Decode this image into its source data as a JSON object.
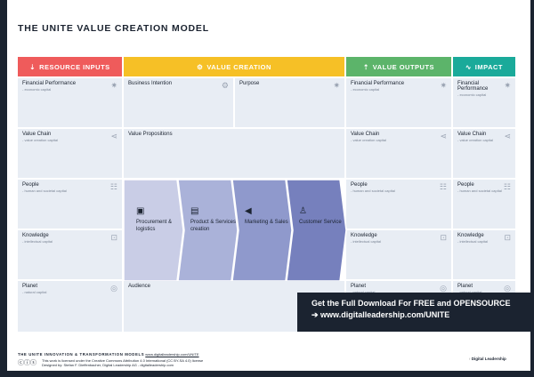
{
  "title": "THE UNITE VALUE CREATION MODEL",
  "headers": [
    {
      "label": "RESOURCE INPUTS",
      "color": "#ef5b5b",
      "icon": "hand-seed-icon"
    },
    {
      "label": "VALUE CREATION",
      "color": "#f6c026",
      "icon": "gear-bulb-icon"
    },
    {
      "label": "VALUE OUTPUTS",
      "color": "#5cb46a",
      "icon": "hand-output-icon"
    },
    {
      "label": "IMPACT",
      "color": "#1aaa9a",
      "icon": "path-icon"
    }
  ],
  "capitals": [
    {
      "title": "Financial Performance",
      "sub": "- economic capital",
      "icon": "badge-icon"
    },
    {
      "title": "Value Chain",
      "sub": "- value creation capital",
      "icon": "share-icon"
    },
    {
      "title": "People",
      "sub": "- human and societal capital",
      "icon": "people-icon"
    },
    {
      "title": "Knowledge",
      "sub": "- intellectual capital",
      "icon": "book-icon"
    },
    {
      "title": "Planet",
      "sub": "- natural capital",
      "icon": "globe-icon"
    }
  ],
  "creation": {
    "business_intention": "Business Intention",
    "purpose": "Purpose",
    "value_propositions": "Value Propositions",
    "audience": "Audience"
  },
  "chain": [
    {
      "label": "Procurement & logistics",
      "icon": "truck-icon",
      "color": "#c9cde6"
    },
    {
      "label": "Product & Services creation",
      "icon": "box-icon",
      "color": "#aab2d9"
    },
    {
      "label": "Marketing & Sales",
      "icon": "megaphone-icon",
      "color": "#8f99cc"
    },
    {
      "label": "Customer Service",
      "icon": "user-icon",
      "color": "#7680bd"
    }
  ],
  "banner": {
    "line1": "Get the Full Download For FREE and OPENSOURCE",
    "line2": "www.digitalleadership.com/UNITE"
  },
  "footer": {
    "heading": "THE UNITE INNOVATION & TRANSFORMATION MODELS",
    "link": "www.digitalleadership.com/UNITE",
    "license": "This work is licensed under the Creative Commons Attribution 4.0 International (CC BY-SA 4.0) license",
    "designer": "Designed by: Stefan F. Dieffenbacher, Digital Leadership AG - digitalleadership.com",
    "brand": "Digital Leadership"
  }
}
